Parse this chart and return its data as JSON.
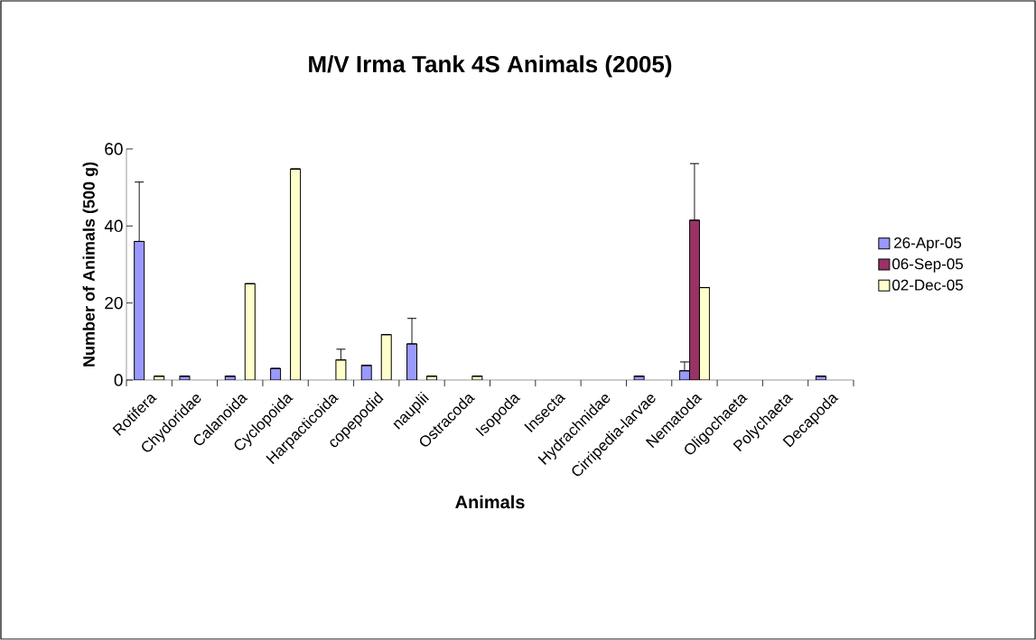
{
  "chart_data": {
    "type": "bar",
    "title": "M/V Irma Tank 4S Animals (2005)",
    "xlabel": "Animals",
    "ylabel": "Number of Animals (500 g)",
    "categories": [
      "Rotifera",
      "Chydoridae",
      "Calanoida",
      "Cyclopoida",
      "Harpacticoida",
      "copepodid",
      "nauplii",
      "Ostracoda",
      "Isopoda",
      "Insecta",
      "Hydrachnidae",
      "Cirripedia-larvae",
      "Nematoda",
      "Oligochaeta",
      "Polychaeta",
      "Decapoda"
    ],
    "series": [
      {
        "name": "26-Apr-05",
        "color": "#9999ff",
        "values": [
          36,
          1,
          1,
          3,
          null,
          3.8,
          9.4,
          null,
          null,
          null,
          null,
          1,
          2.4,
          null,
          null,
          1
        ],
        "errors": [
          [
            36,
            51.4
          ],
          null,
          null,
          null,
          null,
          null,
          [
            9.4,
            16
          ],
          null,
          null,
          null,
          null,
          null,
          [
            2.4,
            4.7
          ],
          null,
          null,
          null
        ]
      },
      {
        "name": "06-Sep-05",
        "color": "#993366",
        "values": [
          null,
          null,
          null,
          null,
          null,
          null,
          null,
          null,
          null,
          null,
          null,
          null,
          41.5,
          null,
          null,
          null
        ],
        "errors": [
          null,
          null,
          null,
          null,
          null,
          null,
          null,
          null,
          null,
          null,
          null,
          null,
          [
            41.5,
            56.2
          ],
          null,
          null,
          null
        ]
      },
      {
        "name": "02-Dec-05",
        "color": "#ffffcc",
        "values": [
          1,
          null,
          25,
          54.8,
          5.2,
          11.8,
          1,
          1,
          null,
          null,
          null,
          null,
          24,
          null,
          null,
          null
        ],
        "errors": [
          null,
          null,
          null,
          null,
          [
            5.2,
            8
          ],
          null,
          null,
          null,
          null,
          null,
          null,
          null,
          null,
          null,
          null,
          null
        ]
      }
    ],
    "ylim": [
      0,
      60
    ],
    "yticks": [
      0,
      20,
      40,
      60
    ],
    "legend": "right"
  }
}
